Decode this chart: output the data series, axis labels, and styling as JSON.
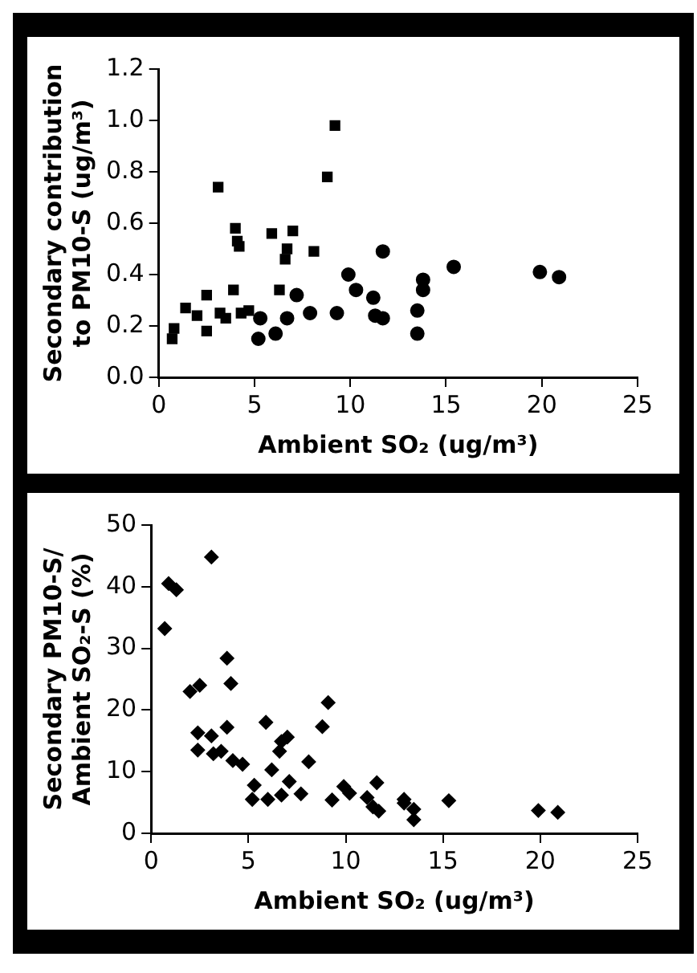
{
  "chart_data": [
    {
      "type": "scatter",
      "xlabel": "Ambient SO₂ (ug/m³)",
      "ylabel": "Secondary contribution\nto PM10-S (ug/m³)",
      "xlim": [
        0,
        25
      ],
      "xticks": [
        0,
        5,
        10,
        15,
        20,
        25
      ],
      "ylim": [
        0,
        1.2
      ],
      "yticks": [
        {
          "value": 0,
          "label": "0.0"
        },
        0.2,
        0.4,
        0.6,
        0.8,
        {
          "value": 1,
          "label": "1.0"
        },
        1.2
      ],
      "grid": false,
      "legend": false,
      "series": [
        {
          "color": "#000000",
          "marker": "square",
          "x": [
            0.7,
            0.8,
            1.4,
            2.0,
            2.5,
            2.5,
            3.1,
            3.2,
            3.5,
            3.9,
            4.0,
            4.1,
            4.2,
            4.3,
            4.7,
            5.9,
            6.3,
            6.6,
            6.7,
            7.0,
            8.1,
            8.8,
            9.2
          ],
          "values": [
            0.15,
            0.19,
            0.27,
            0.24,
            0.18,
            0.32,
            0.74,
            0.25,
            0.23,
            0.34,
            0.58,
            0.53,
            0.51,
            0.25,
            0.26,
            0.56,
            0.34,
            0.46,
            0.5,
            0.57,
            0.49,
            0.78,
            0.98
          ]
        },
        {
          "color": "#000000",
          "marker": "circle",
          "x": [
            5.3,
            5.2,
            6.1,
            6.7,
            7.2,
            7.9,
            9.3,
            9.9,
            10.3,
            11.2,
            11.3,
            11.7,
            11.7,
            13.8,
            13.8,
            13.5,
            13.5,
            15.4,
            19.9,
            20.9
          ],
          "values": [
            0.23,
            0.15,
            0.17,
            0.23,
            0.32,
            0.25,
            0.25,
            0.4,
            0.34,
            0.31,
            0.24,
            0.49,
            0.23,
            0.38,
            0.34,
            0.26,
            0.17,
            0.43,
            0.41,
            0.39
          ]
        }
      ]
    },
    {
      "type": "scatter",
      "xlabel": "Ambient SO₂ (ug/m³)",
      "ylabel": "Secondary PM10-S/\nAmbient SO₂-S (%)",
      "xlim": [
        0,
        25
      ],
      "xticks": [
        0,
        5,
        10,
        15,
        20,
        25
      ],
      "ylim": [
        0,
        50
      ],
      "yticks": [
        0,
        10,
        20,
        30,
        40,
        50
      ],
      "grid": false,
      "legend": false,
      "series": [
        {
          "color": "#000000",
          "marker": "diamond",
          "x": [
            0.7,
            0.9,
            1.3,
            2.0,
            2.5,
            2.4,
            2.4,
            3.1,
            3.1,
            3.2,
            3.6,
            3.9,
            3.9,
            4.1,
            4.2,
            4.7,
            5.3,
            5.2,
            5.9,
            6.2,
            6.0,
            6.6,
            6.7,
            7.0,
            6.7,
            7.1,
            7.7,
            8.1,
            8.8,
            9.1,
            9.3,
            9.9,
            10.2,
            11.1,
            11.4,
            11.6,
            11.7,
            13.0,
            13.0,
            13.5,
            13.5,
            15.3,
            19.9,
            20.9
          ],
          "values": [
            33.2,
            40.5,
            39.5,
            23.0,
            24.0,
            16.3,
            13.5,
            44.8,
            15.8,
            12.9,
            13.3,
            17.2,
            28.4,
            24.3,
            11.8,
            11.2,
            7.8,
            5.5,
            18.0,
            10.3,
            5.5,
            13.3,
            14.9,
            15.6,
            6.2,
            8.4,
            6.4,
            11.6,
            17.3,
            21.2,
            5.4,
            7.6,
            6.5,
            5.8,
            4.3,
            8.2,
            3.6,
            5.5,
            4.9,
            3.9,
            2.2,
            5.3,
            3.7,
            3.4
          ]
        }
      ]
    }
  ]
}
